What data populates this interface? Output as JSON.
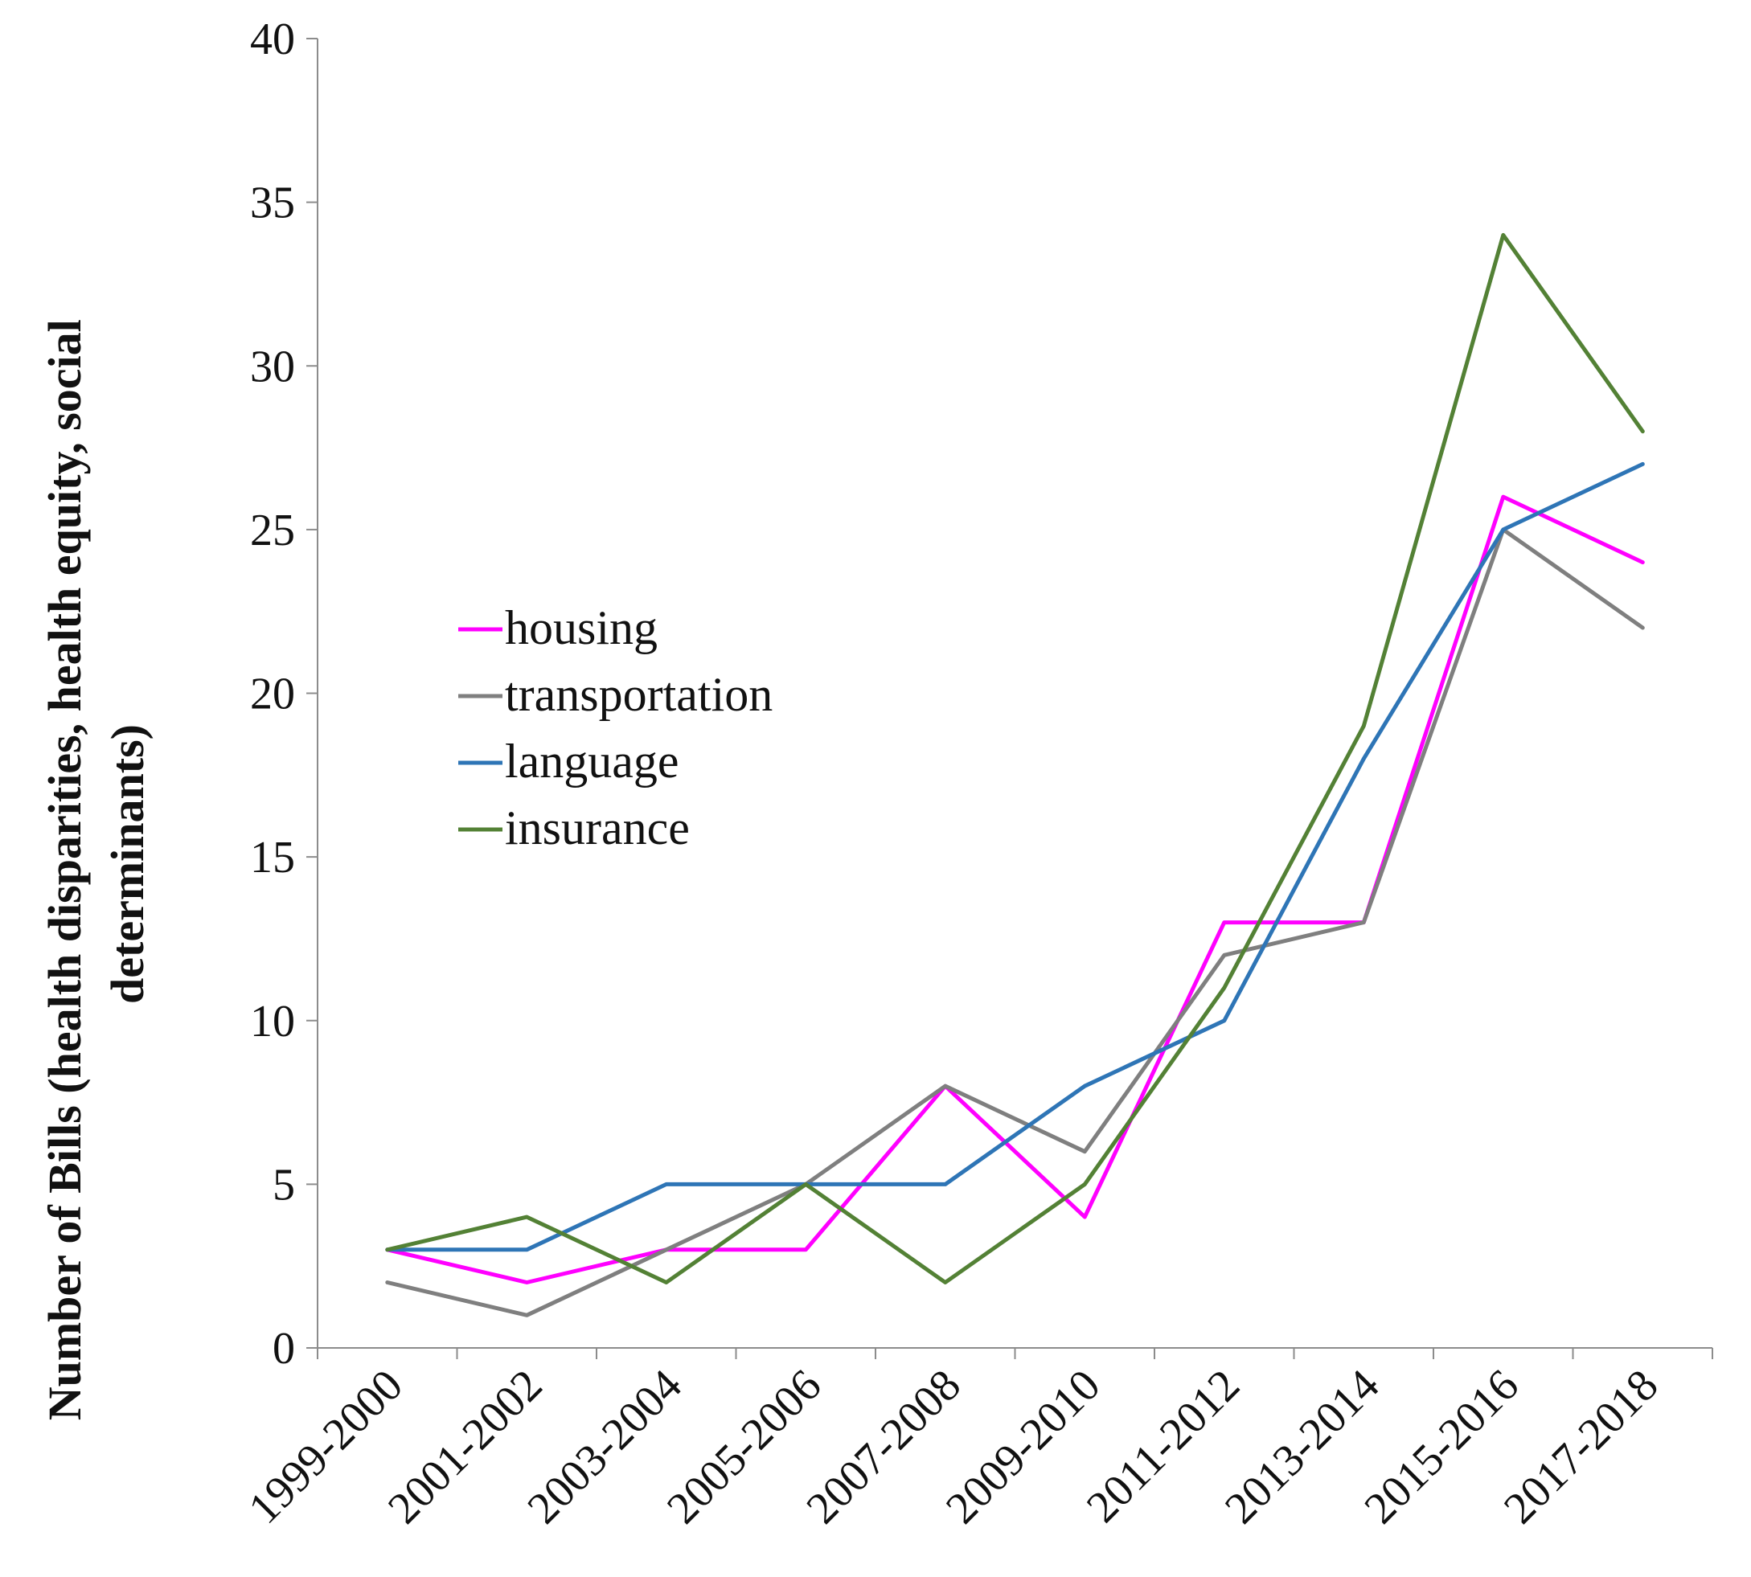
{
  "chart_data": {
    "type": "line",
    "title": "",
    "xlabel": "",
    "ylabel_lines": [
      "Number of  Bills (health disparities, health equity, social",
      "determinants)"
    ],
    "categories": [
      "1999-2000",
      "2001-2002",
      "2003-2004",
      "2005-2006",
      "2007-2008",
      "2009-2010",
      "2011-2012",
      "2013-2014",
      "2015-2016",
      "2017-2018"
    ],
    "ylim": [
      0,
      40
    ],
    "yticks": [
      0,
      5,
      10,
      15,
      20,
      25,
      30,
      35,
      40
    ],
    "grid": false,
    "legend_position": "center-left",
    "series": [
      {
        "name": "housing",
        "color": "#ff00ff",
        "values": [
          3,
          2,
          3,
          3,
          8,
          4,
          13,
          13,
          26,
          24
        ]
      },
      {
        "name": "transportation",
        "color": "#7f7f7f",
        "values": [
          2,
          1,
          3,
          5,
          8,
          6,
          12,
          13,
          25,
          22
        ]
      },
      {
        "name": "language",
        "color": "#2e75b6",
        "values": [
          3,
          3,
          5,
          5,
          5,
          8,
          10,
          18,
          25,
          27
        ]
      },
      {
        "name": "insurance",
        "color": "#538135",
        "values": [
          3,
          4,
          2,
          5,
          2,
          5,
          11,
          19,
          34,
          28
        ]
      }
    ]
  }
}
